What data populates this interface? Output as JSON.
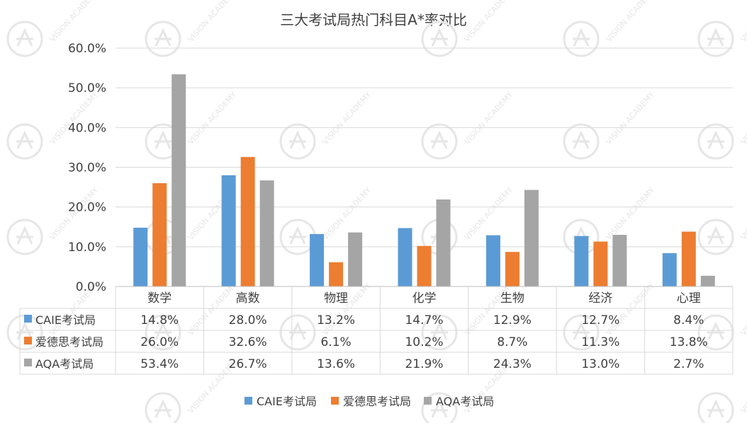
{
  "chart_data": {
    "type": "bar",
    "title": "三大考试局热门科目A*率对比",
    "categories": [
      "数学",
      "高数",
      "物理",
      "化学",
      "生物",
      "经济",
      "心理"
    ],
    "y_ticks": [
      "0.0%",
      "10.0%",
      "20.0%",
      "30.0%",
      "40.0%",
      "50.0%",
      "60.0%"
    ],
    "ylim": [
      0,
      60
    ],
    "grid": true,
    "legend_position": "bottom",
    "series": [
      {
        "name": "CAIE考试局",
        "color": "#5B9BD5",
        "values": [
          14.8,
          28.0,
          13.2,
          14.7,
          12.9,
          12.7,
          8.4
        ],
        "labels": [
          "14.8%",
          "28.0%",
          "13.2%",
          "14.7%",
          "12.9%",
          "12.7%",
          "8.4%"
        ]
      },
      {
        "name": "爱德思考试局",
        "color": "#ED7D31",
        "values": [
          26.0,
          32.6,
          6.1,
          10.2,
          8.7,
          11.3,
          13.8
        ],
        "labels": [
          "26.0%",
          "32.6%",
          "6.1%",
          "10.2%",
          "8.7%",
          "11.3%",
          "13.8%"
        ]
      },
      {
        "name": "AQA考试局",
        "color": "#A5A5A5",
        "values": [
          53.4,
          26.7,
          13.6,
          21.9,
          24.3,
          13.0,
          2.7
        ],
        "labels": [
          "53.4%",
          "26.7%",
          "13.6%",
          "21.9%",
          "24.3%",
          "13.0%",
          "2.7%"
        ]
      }
    ]
  },
  "watermark": {
    "text": "VISION ACADEMY",
    "color": "#e6e6e6"
  }
}
